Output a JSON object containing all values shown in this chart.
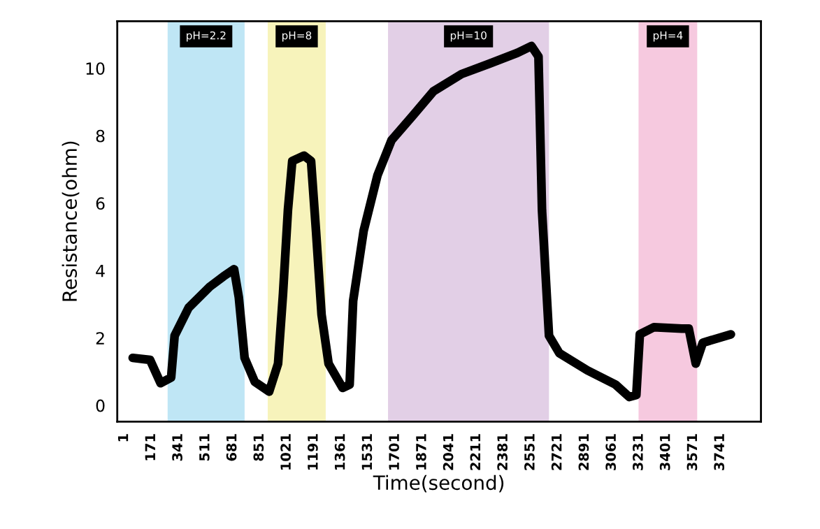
{
  "chart_data": {
    "type": "line",
    "xlabel": "Time(second)",
    "ylabel": "Resistance(ohm)",
    "x": [
      54,
      163,
      229,
      295,
      317,
      405,
      537,
      624,
      690,
      720,
      756,
      820,
      910,
      966,
      997,
      1028,
      1055,
      1129,
      1173,
      1204,
      1239,
      1283,
      1371,
      1415,
      1437,
      1503,
      1590,
      1678,
      1810,
      1941,
      2117,
      2292,
      2468,
      2556,
      2600,
      2622,
      2666,
      2731,
      2907,
      3083,
      3170,
      3214,
      3236,
      3324,
      3499,
      3543,
      3587,
      3631,
      3807
    ],
    "series": [
      {
        "color": "#000000",
        "values": [
          1.41,
          1.35,
          0.66,
          0.83,
          2.07,
          2.9,
          3.52,
          3.83,
          4.04,
          3.2,
          1.41,
          0.7,
          0.41,
          1.24,
          3.31,
          5.8,
          7.25,
          7.41,
          7.25,
          5.18,
          2.69,
          1.24,
          0.52,
          0.62,
          3.1,
          5.18,
          6.83,
          7.87,
          8.59,
          9.32,
          9.83,
          10.14,
          10.46,
          10.66,
          10.35,
          5.8,
          2.07,
          1.55,
          1.04,
          0.62,
          0.25,
          0.31,
          2.11,
          2.32,
          2.28,
          2.28,
          1.24,
          1.86,
          2.11
        ]
      }
    ],
    "xlim": [
      -43,
      3996
    ],
    "ylim": [
      -0.48,
      11.4
    ],
    "xticks": [
      1,
      171,
      341,
      511,
      681,
      851,
      1021,
      1191,
      1361,
      1531,
      1701,
      1871,
      2041,
      2211,
      2381,
      2551,
      2721,
      2891,
      3061,
      3231,
      3401,
      3571,
      3741
    ],
    "yticks": [
      0,
      2,
      4,
      6,
      8,
      10
    ],
    "bands": [
      {
        "axis": "x",
        "from": 273,
        "to": 756,
        "label": "pH=2.2",
        "color": "#bfe6f5"
      },
      {
        "axis": "x",
        "from": 901,
        "to": 1265,
        "label": "pH=8",
        "color": "#f7f3bb"
      },
      {
        "axis": "x",
        "from": 1656,
        "to": 2666,
        "label": "pH=10",
        "color": "#e2cfe6"
      },
      {
        "axis": "x",
        "from": 3228,
        "to": 3596,
        "label": "pH=4",
        "color": "#f6c9df"
      }
    ],
    "grid": false,
    "legend": false,
    "line_style": "solid"
  }
}
